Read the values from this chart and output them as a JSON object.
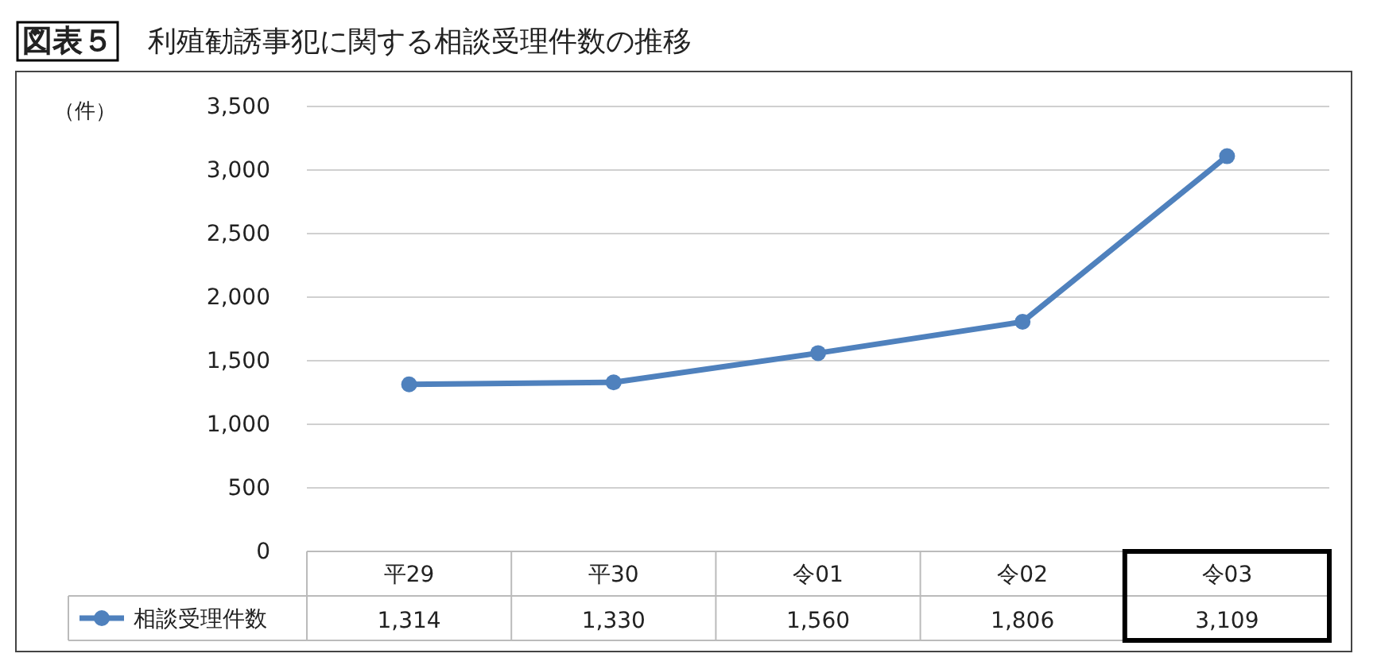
{
  "chart_data": {
    "type": "line",
    "title": "図表５",
    "subtitle": "利殖勧誘事犯に関する相談受理件数の推移",
    "ylabel": "（件）",
    "categories": [
      "平29",
      "平30",
      "令01",
      "令02",
      "令03"
    ],
    "series": [
      {
        "name": "相談受理件数",
        "color": "#4f81bd",
        "values": [
          1314,
          1330,
          1560,
          1806,
          3109
        ],
        "value_labels": [
          "1,314",
          "1,330",
          "1,560",
          "1,806",
          "3,109"
        ]
      }
    ],
    "ylim": [
      0,
      3500
    ],
    "yticks": [
      {
        "value": 0,
        "label": "0"
      },
      {
        "value": 500,
        "label": "500"
      },
      {
        "value": 1000,
        "label": "1,000"
      },
      {
        "value": 1500,
        "label": "1,500"
      },
      {
        "value": 2000,
        "label": "2,000"
      },
      {
        "value": 2500,
        "label": "2,500"
      },
      {
        "value": 3000,
        "label": "3,000"
      },
      {
        "value": 3500,
        "label": "3,500"
      }
    ],
    "grid": "y",
    "legend": "bottom",
    "marker": "circle"
  }
}
